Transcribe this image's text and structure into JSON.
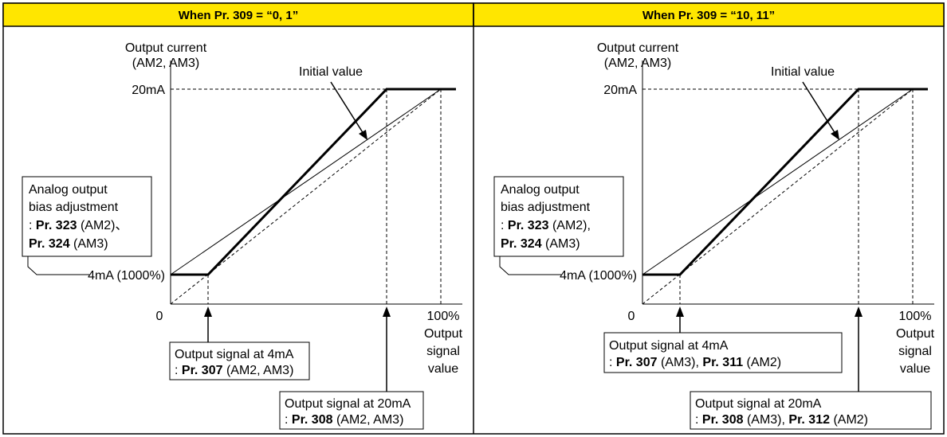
{
  "panels": [
    {
      "header": "When Pr. 309 = “0, 1”",
      "y_axis_label": [
        "Output current",
        "(AM2, AM3)"
      ],
      "initial_value_label": "Initial value",
      "y_tick_top": "20mA",
      "origin_label": "0",
      "x_tick_right": "100%",
      "x_axis_label": [
        "Output",
        "signal",
        "value"
      ],
      "y_tick_bias": "4mA (1000%)",
      "bias_box": {
        "line1": "Analog output",
        "line2": "bias adjustment",
        "line3_prefix": ": ",
        "line3_bold": "Pr. 323",
        "line3_rest": " (AM2)、",
        "line4_bold": "Pr. 324",
        "line4_rest": " (AM3)"
      },
      "sig4_box": {
        "line1": "Output signal at 4mA",
        "line2_prefix": ": ",
        "line2_bold": "Pr. 307",
        "line2_rest": " (AM2, AM3)",
        "line2_bold2": "",
        "line2_rest2": ""
      },
      "sig20_box": {
        "line1": "Output signal at 20mA",
        "line2_prefix": ": ",
        "line2_bold": "Pr. 308",
        "line2_rest": " (AM2, AM3)",
        "line2_bold2": "",
        "line2_rest2": ""
      }
    },
    {
      "header": "When Pr. 309 = “10, 11”",
      "y_axis_label": [
        "Output current",
        "(AM2, AM3)"
      ],
      "initial_value_label": "Initial value",
      "y_tick_top": "20mA",
      "origin_label": "0",
      "x_tick_right": "100%",
      "x_axis_label": [
        "Output",
        "signal",
        "value"
      ],
      "y_tick_bias": "4mA (1000%)",
      "bias_box": {
        "line1": "Analog output",
        "line2": "bias adjustment",
        "line3_prefix": ": ",
        "line3_bold": "Pr. 323",
        "line3_rest": " (AM2),",
        "line4_bold": "Pr. 324",
        "line4_rest": " (AM3)"
      },
      "sig4_box": {
        "line1": "Output signal at 4mA",
        "line2_prefix": ": ",
        "line2_bold": "Pr. 307",
        "line2_rest": " (AM3), ",
        "line2_bold2": "Pr. 311",
        "line2_rest2": " (AM2)"
      },
      "sig20_box": {
        "line1": "Output signal at 20mA",
        "line2_prefix": ": ",
        "line2_bold": "Pr. 308",
        "line2_rest": " (AM3), ",
        "line2_bold2": "Pr. 312",
        "line2_rest2": " (AM2)"
      }
    }
  ],
  "colors": {
    "header_bg": "#ffe600",
    "line": "#000000",
    "background": "#ffffff"
  }
}
